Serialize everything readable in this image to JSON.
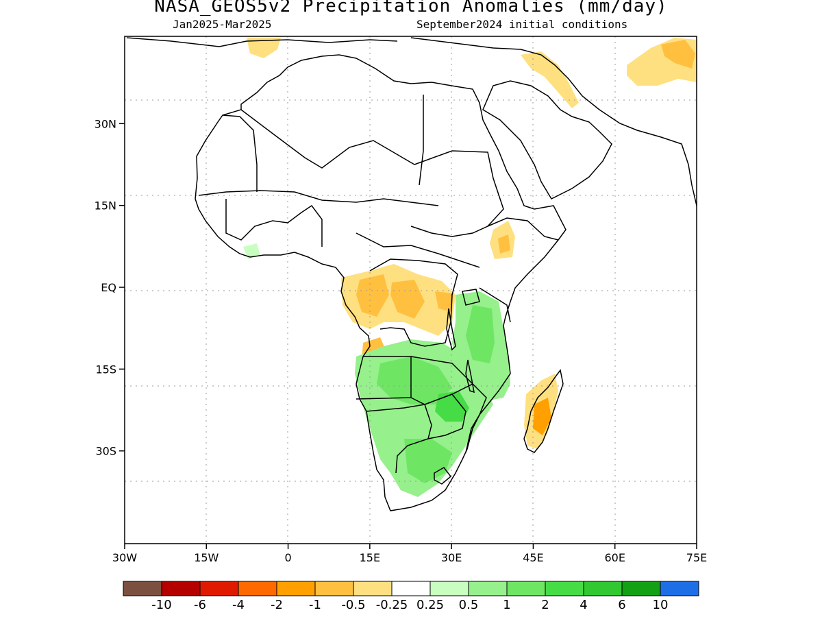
{
  "title": "NASA_GEOS5v2 Precipitation Anomalies (mm/day)",
  "subtitle_left": "Jan2025-Mar2025",
  "subtitle_right": "September2024 initial conditions",
  "map": {
    "lon_range": [
      -30,
      75
    ],
    "lat_range": [
      -47,
      46
    ],
    "x_ticks": [
      "30W",
      "15W",
      "0",
      "15E",
      "30E",
      "45E",
      "60E",
      "75E"
    ],
    "x_tick_values": [
      -30,
      -15,
      0,
      15,
      30,
      45,
      60,
      75
    ],
    "y_ticks": [
      "30N",
      "15N",
      "EQ",
      "15S",
      "30S"
    ],
    "y_tick_values": [
      30,
      15,
      0,
      -15,
      -30
    ],
    "grid": true,
    "grid_style": "dotted"
  },
  "colorbar": {
    "colors": [
      "#7b5040",
      "#b40000",
      "#e01a00",
      "#ff6a00",
      "#ffa000",
      "#ffc040",
      "#ffe080",
      "#ffffff",
      "#c8ffc0",
      "#96f08c",
      "#6ee664",
      "#46dc46",
      "#32c832",
      "#14a014",
      "#1e6ee6"
    ],
    "labels": [
      "-10",
      "-6",
      "-4",
      "-2",
      "-1",
      "-0.5",
      "-0.25",
      "0.25",
      "0.5",
      "1",
      "2",
      "4",
      "6",
      "10"
    ]
  }
}
